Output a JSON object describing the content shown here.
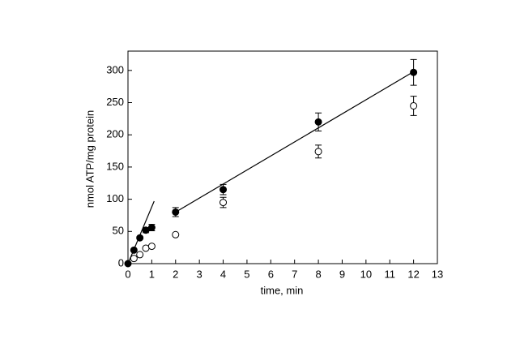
{
  "chart_data": {
    "type": "scatter",
    "x_label": "time, min",
    "y_label": "nmol ATP/mg protein",
    "xlim": [
      0,
      13
    ],
    "xticks": [
      0,
      1,
      2,
      3,
      4,
      5,
      6,
      7,
      8,
      9,
      10,
      11,
      12,
      13
    ],
    "ylim": [
      0,
      330
    ],
    "yticks": [
      0,
      50,
      100,
      150,
      200,
      250,
      300
    ],
    "grid": false,
    "series": [
      {
        "color": "#000000",
        "marker": "filled",
        "x": [
          0,
          0.25,
          0.5,
          0.75,
          1,
          2,
          4,
          8,
          12
        ],
        "values": [
          0,
          21,
          40,
          52,
          56,
          80,
          115,
          220,
          297
        ],
        "errors": [
          null,
          null,
          null,
          4,
          5,
          7,
          8,
          14,
          20
        ]
      },
      {
        "color": "#000000",
        "marker": "open",
        "x": [
          0.25,
          0.5,
          0.75,
          1,
          2,
          4,
          8,
          12
        ],
        "values": [
          8,
          14,
          24,
          27,
          45,
          95,
          174,
          245
        ],
        "errors": [
          null,
          null,
          null,
          null,
          null,
          8,
          10,
          15
        ]
      }
    ],
    "fits": [
      {
        "color": "#000000",
        "x": [
          0,
          1.1
        ],
        "values": [
          0,
          97
        ]
      },
      {
        "color": "#000000",
        "x": [
          2,
          12
        ],
        "values": [
          80,
          298
        ]
      }
    ]
  }
}
